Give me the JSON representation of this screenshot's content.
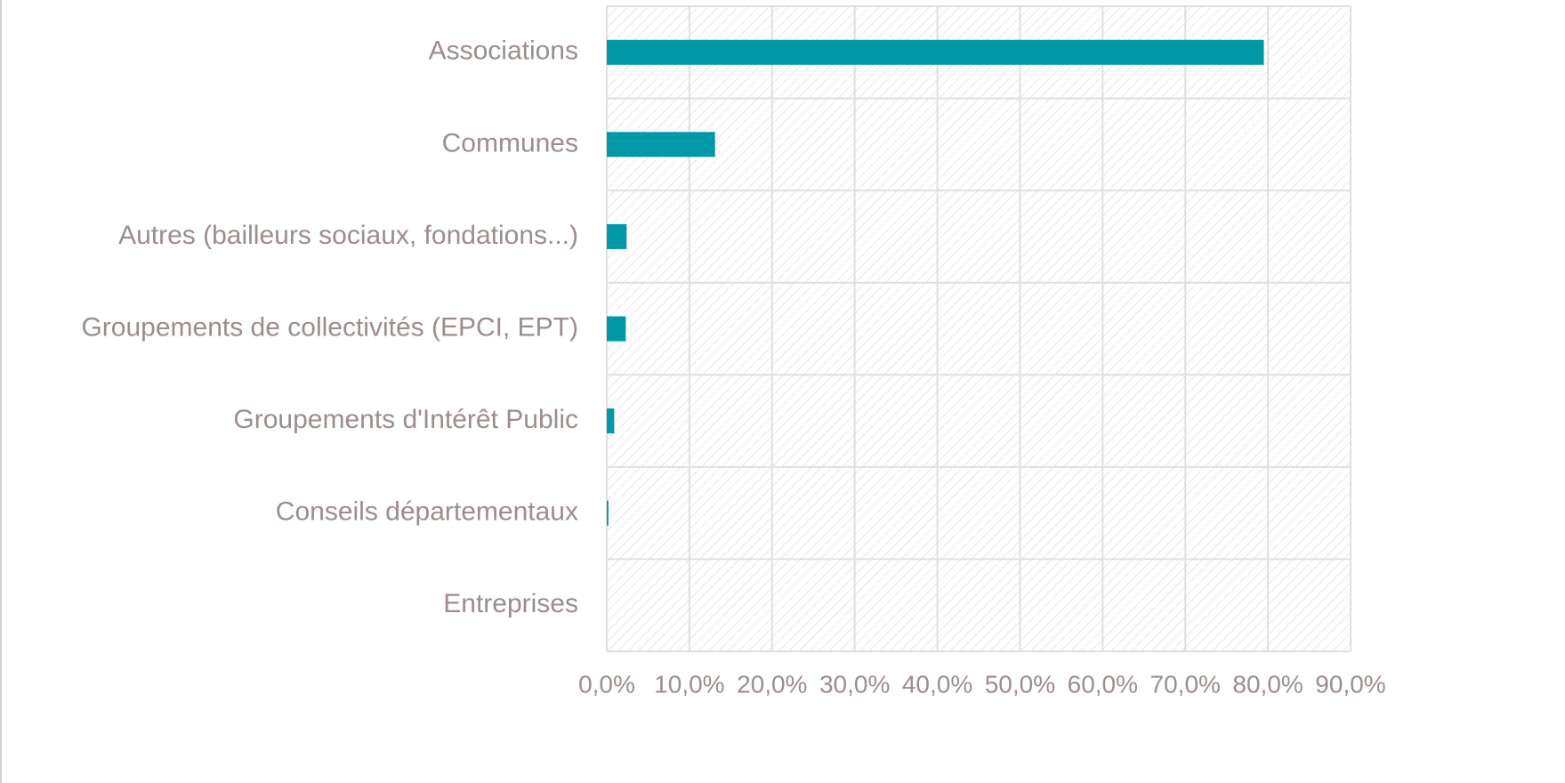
{
  "chart_data": {
    "type": "barh",
    "categories": [
      "Associations",
      "Communes",
      "Autres (bailleurs sociaux, fondations...)",
      "Groupements de collectivités (EPCI, EPT)",
      "Groupements d'Intérêt Public",
      "Conseils départementaux",
      "Entreprises"
    ],
    "values": [
      79.5,
      13.1,
      2.4,
      2.3,
      0.9,
      0.2,
      0
    ],
    "color": "#0097a7",
    "xlim": [
      0,
      90
    ],
    "xticks": [
      {
        "value": 0,
        "label": "0,0%"
      },
      {
        "value": 10,
        "label": "10,0%"
      },
      {
        "value": 20,
        "label": "20,0%"
      },
      {
        "value": 30,
        "label": "30,0%"
      },
      {
        "value": 40,
        "label": "40,0%"
      },
      {
        "value": 50,
        "label": "50,0%"
      },
      {
        "value": 60,
        "label": "60,0%"
      },
      {
        "value": 70,
        "label": "70,0%"
      },
      {
        "value": 80,
        "label": "80,0%"
      },
      {
        "value": 90,
        "label": "90,0%"
      }
    ],
    "grid": true
  }
}
